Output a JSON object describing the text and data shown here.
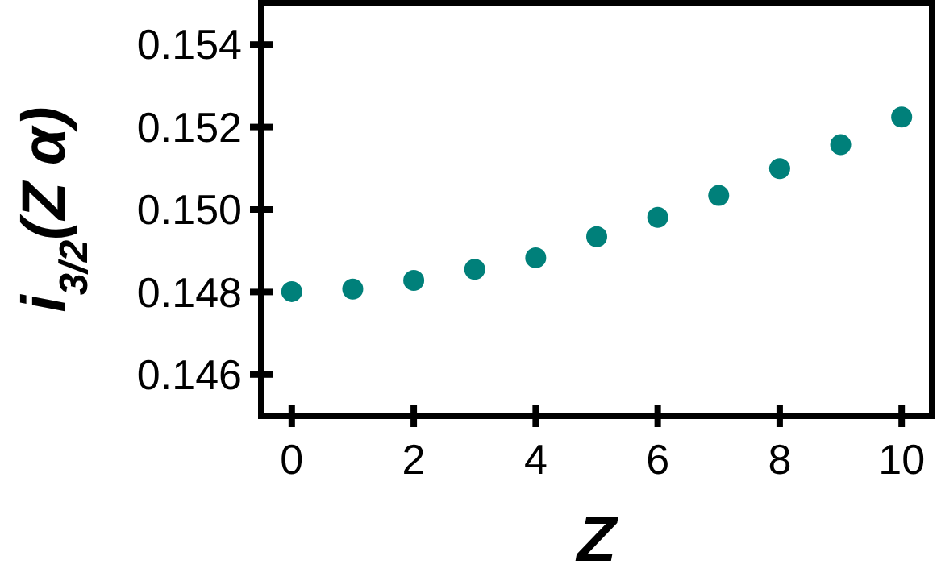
{
  "chart_data": {
    "type": "scatter",
    "xlabel": "Z",
    "ylabel": "i$_{3/2}$(Z α)",
    "x": [
      0,
      1,
      2,
      3,
      4,
      5,
      6,
      7,
      8,
      9,
      10
    ],
    "series": [
      {
        "color": "#00807a",
        "values": [
          0.14801,
          0.14807,
          0.14828,
          0.14855,
          0.14883,
          0.14934,
          0.14981,
          0.15034,
          0.15099,
          0.15157,
          0.15224
        ]
      }
    ],
    "xlim": [
      -0.5,
      10.5
    ],
    "xticks": [
      0,
      2,
      4,
      6,
      8,
      10
    ],
    "ylim": [
      0.145,
      0.155
    ],
    "yticks": [
      0.146,
      0.148,
      {
        "value": 0.15,
        "label": "0.150"
      },
      0.152,
      0.154
    ],
    "marker": "circle"
  }
}
